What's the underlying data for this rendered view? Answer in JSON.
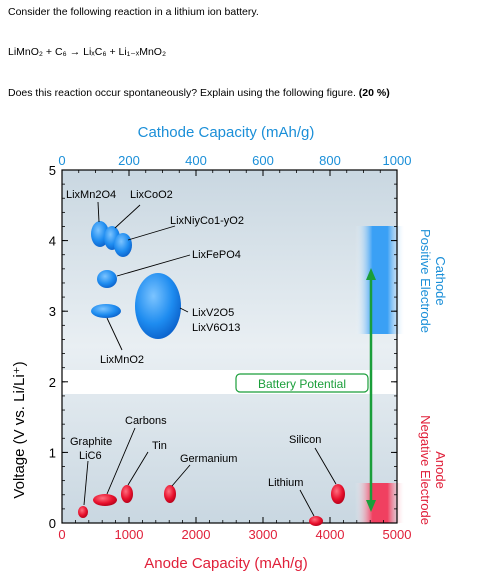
{
  "question": {
    "intro": "Consider the following reaction in a lithium ion battery.",
    "reaction": "LiMnO₂ + C₆ → LiₓC₆ + Li₁₋ₓMnO₂",
    "prompt": "Does this reaction occur spontaneously? Explain using the following figure.",
    "points": "(20 %)"
  },
  "chart_data": {
    "type": "scatter",
    "title_top": "Cathode Capacity (mAh/g)",
    "xlabel_bottom": "Anode Capacity (mAh/g)",
    "ylabel": "Voltage (V vs. Li/Li⁺)",
    "top_ticks": [
      "0",
      "200",
      "400",
      "600",
      "800",
      "1000"
    ],
    "bottom_ticks": [
      "0",
      "1000",
      "2000",
      "3000",
      "4000",
      "5000"
    ],
    "y_ticks": [
      "0",
      "1",
      "2",
      "3",
      "4",
      "5"
    ],
    "xlim_top": [
      0,
      1000
    ],
    "xlim_bottom": [
      0,
      5000
    ],
    "ylim": [
      0,
      5
    ],
    "colors": {
      "cathode": "#1e90ff",
      "anode": "#e8112d",
      "axis_title": "#1b8fd8",
      "anode_title": "#e0203a",
      "potential": "#1a9e3a"
    },
    "cathode_materials": [
      {
        "name": "LixMn2O4",
        "capacity": 140,
        "voltage": 4.05
      },
      {
        "name": "LixCoO2",
        "capacity": 180,
        "voltage": 4.15
      },
      {
        "name": "LixNiyCo1-yO2",
        "capacity": 200,
        "voltage": 3.9
      },
      {
        "name": "LixFePO4",
        "capacity": 160,
        "voltage": 3.45
      },
      {
        "name": "LixV2O5 / LixV6O13",
        "capacity": 320,
        "voltage": 2.9
      },
      {
        "name": "LixMnO2",
        "capacity": 170,
        "voltage": 2.9
      }
    ],
    "anode_materials": [
      {
        "name": "Graphite LiC6",
        "capacity": 372,
        "voltage": 0.2
      },
      {
        "name": "Carbons",
        "capacity": 800,
        "voltage": 0.35
      },
      {
        "name": "Tin",
        "capacity": 990,
        "voltage": 0.5
      },
      {
        "name": "Germanium",
        "capacity": 1600,
        "voltage": 0.45
      },
      {
        "name": "Lithium",
        "capacity": 3860,
        "voltage": 0.0
      },
      {
        "name": "Silicon",
        "capacity": 4200,
        "voltage": 0.4
      }
    ],
    "labels": {
      "lmn2o4": "LixMn2O4",
      "lco": "LixCoO2",
      "lnco": "LixNiyCo1-yO2",
      "lfp": "LixFePO4",
      "lv2o5": "LixV2O5",
      "lv6o13": "LixV6O13",
      "lmno2": "LixMnO2",
      "carbons": "Carbons",
      "graphite": "Graphite",
      "lic6": "LiC6",
      "tin": "Tin",
      "germanium": "Germanium",
      "silicon": "Silicon",
      "lithium": "Lithium"
    },
    "battery_potential_label": "Battery Potential",
    "side_labels": {
      "cathode": "Cathode",
      "positive": "Positive Electrode",
      "anode": "Anode",
      "negative": "Negative Electrode"
    }
  }
}
